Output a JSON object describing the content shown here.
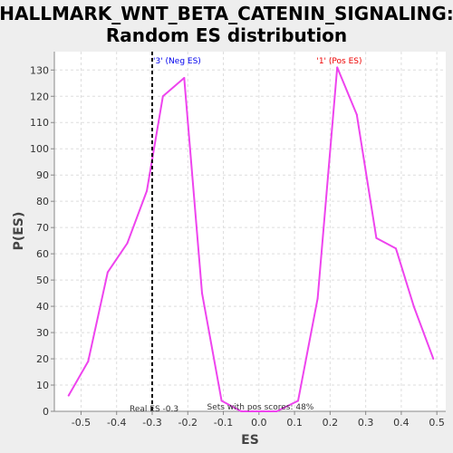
{
  "chart_data": {
    "type": "line",
    "title_lines": [
      "HALLMARK_WNT_BETA_CATENIN_SIGNALING:",
      "Random ES distribution"
    ],
    "xlabel": "ES",
    "ylabel": "P(ES)",
    "xlim": [
      -0.575,
      0.525
    ],
    "ylim": [
      0,
      137
    ],
    "x_ticks": [
      -0.5,
      -0.4,
      -0.3,
      -0.2,
      -0.1,
      0.0,
      0.1,
      0.2,
      0.3,
      0.4,
      0.5
    ],
    "x_tick_labels": [
      "-0.5",
      "-0.4",
      "-0.3",
      "-0.2",
      "-0.1",
      "0.0",
      "0.1",
      "0.2",
      "0.3",
      "0.4",
      "0.5"
    ],
    "y_ticks": [
      0,
      10,
      20,
      30,
      40,
      50,
      60,
      70,
      80,
      90,
      100,
      110,
      120,
      130
    ],
    "y_tick_labels": [
      "0",
      "10",
      "20",
      "30",
      "40",
      "50",
      "60",
      "70",
      "80",
      "90",
      "100",
      "110",
      "120",
      "130"
    ],
    "grid": true,
    "series": [
      {
        "color": "#ee44ee",
        "x": [
          -0.535,
          -0.48,
          -0.425,
          -0.37,
          -0.315,
          -0.27,
          -0.21,
          -0.16,
          -0.105,
          -0.05,
          0.0,
          0.05,
          0.11,
          0.165,
          0.22,
          0.275,
          0.33,
          0.385,
          0.435,
          0.49
        ],
        "y": [
          6,
          19,
          53,
          64,
          84,
          120,
          127,
          45,
          4,
          0,
          0,
          0,
          4,
          43,
          131,
          113,
          66,
          62,
          40,
          20
        ]
      }
    ],
    "real_es_line": {
      "x": -0.3,
      "color": "#000000"
    },
    "annotations": {
      "neg_label": "'3' (Neg ES)",
      "neg_color": "#0000ee",
      "pos_label": "'1' (Pos ES)",
      "pos_color": "#ee0000",
      "real_es_text": "Real ES -0.3",
      "pos_scores_text": "Sets with pos scores: 48%"
    }
  }
}
